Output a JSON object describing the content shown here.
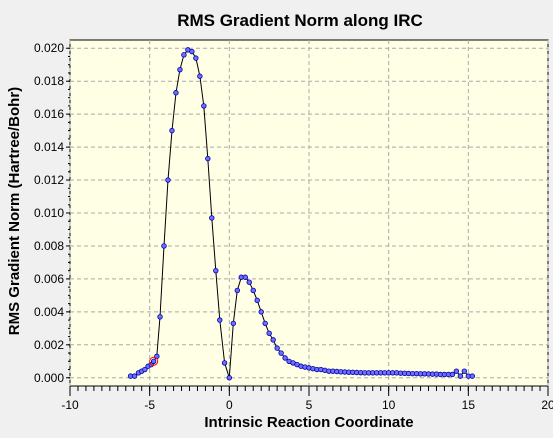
{
  "chart_data": {
    "type": "scatter",
    "title": "RMS Gradient Norm along IRC",
    "xlabel": "Intrinsic Reaction Coordinate",
    "ylabel": "RMS Gradient Norm (Hartree/Bohr)",
    "xlim": [
      -10,
      20
    ],
    "ylim": [
      -0.0005,
      0.0205
    ],
    "xticks": [
      "-10",
      "-5",
      "0",
      "5",
      "10",
      "15",
      "20"
    ],
    "xtick_values": [
      -10,
      -5,
      0,
      5,
      10,
      15,
      20
    ],
    "yticks": [
      "0.000",
      "0.002",
      "0.004",
      "0.006",
      "0.008",
      "0.010",
      "0.012",
      "0.014",
      "0.016",
      "0.018",
      "0.020"
    ],
    "ytick_values": [
      0.0,
      0.002,
      0.004,
      0.006,
      0.008,
      0.01,
      0.012,
      0.014,
      0.016,
      0.018,
      0.02
    ],
    "grid": true,
    "line_color": "#000000",
    "marker_color": "#6e6eff",
    "highlight_color": "#ff0000",
    "highlight_index": 7,
    "series": [
      {
        "x": [
          -6.2,
          -5.95,
          -5.7,
          -5.5,
          -5.3,
          -5.1,
          -4.9,
          -4.75,
          -4.55,
          -4.35,
          -4.1,
          -3.85,
          -3.6,
          -3.35,
          -3.1,
          -2.85,
          -2.6,
          -2.35,
          -2.1,
          -1.85,
          -1.6,
          -1.35,
          -1.1,
          -0.85,
          -0.6,
          -0.3,
          0.0,
          0.25,
          0.5,
          0.75,
          1.0,
          1.25,
          1.5,
          1.75,
          2.0,
          2.25,
          2.5,
          2.75,
          3.0,
          3.25,
          3.5,
          3.75,
          4.0,
          4.25,
          4.5,
          4.75,
          5.0,
          5.25,
          5.5,
          5.75,
          6.0,
          6.25,
          6.5,
          6.75,
          7.0,
          7.25,
          7.5,
          7.75,
          8.0,
          8.25,
          8.5,
          8.75,
          9.0,
          9.25,
          9.5,
          9.75,
          10.0,
          10.25,
          10.5,
          10.75,
          11.0,
          11.25,
          11.5,
          11.75,
          12.0,
          12.25,
          12.5,
          12.75,
          13.0,
          13.25,
          13.5,
          13.75,
          14.0,
          14.25,
          14.5,
          14.75,
          15.0,
          15.25
        ],
        "y": [
          0.0001,
          0.0001,
          0.0003,
          0.0004,
          0.0005,
          0.0007,
          0.0008,
          0.001,
          0.0013,
          0.0037,
          0.008,
          0.012,
          0.015,
          0.0173,
          0.0187,
          0.0196,
          0.0199,
          0.0198,
          0.0194,
          0.0183,
          0.0165,
          0.0133,
          0.0097,
          0.0065,
          0.0035,
          0.0009,
          0.0,
          0.0033,
          0.0053,
          0.0061,
          0.0061,
          0.0058,
          0.0053,
          0.0047,
          0.004,
          0.0033,
          0.0027,
          0.0023,
          0.0018,
          0.0015,
          0.0012,
          0.001,
          0.0009,
          0.0008,
          0.0007,
          0.00065,
          0.0006,
          0.00055,
          0.0005,
          0.0005,
          0.00045,
          0.0004,
          0.0004,
          0.00038,
          0.00036,
          0.00035,
          0.00034,
          0.00033,
          0.00032,
          0.00031,
          0.0003,
          0.0003,
          0.0003,
          0.0003,
          0.0003,
          0.0003,
          0.0003,
          0.0003,
          0.0003,
          0.00028,
          0.00027,
          0.00026,
          0.00025,
          0.00025,
          0.00024,
          0.00024,
          0.00023,
          0.00022,
          0.00022,
          0.0002,
          0.0002,
          0.0002,
          0.0002,
          0.0004,
          0.0001,
          0.0004,
          0.0001,
          0.0001
        ]
      }
    ]
  }
}
